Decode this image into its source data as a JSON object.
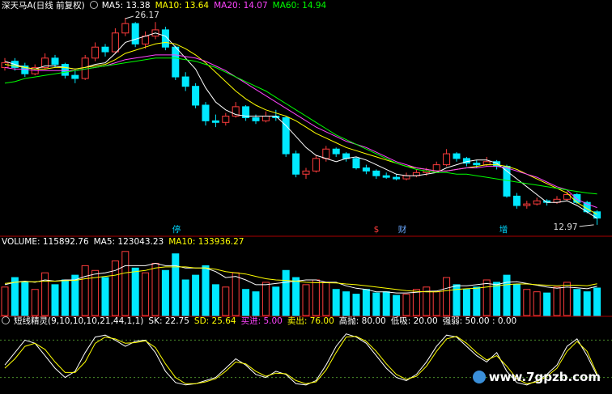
{
  "chart_data": [
    {
      "type": "candlestick",
      "title": "深天马A(日线 前复权)",
      "ylim": [
        12.5,
        27.2
      ],
      "up_color": "#ff3c3c",
      "down_color": "#00e8ff",
      "candles": [
        [
          23.0,
          23.6,
          22.8,
          23.3
        ],
        [
          23.4,
          23.6,
          22.8,
          23.0
        ],
        [
          23.1,
          23.3,
          22.4,
          22.6
        ],
        [
          22.6,
          23.2,
          22.5,
          23.0
        ],
        [
          23.0,
          23.9,
          22.9,
          23.6
        ],
        [
          23.6,
          23.8,
          23.0,
          23.2
        ],
        [
          23.2,
          23.3,
          22.3,
          22.5
        ],
        [
          22.5,
          22.8,
          22.0,
          22.3
        ],
        [
          22.3,
          23.8,
          22.2,
          23.6
        ],
        [
          23.6,
          24.6,
          23.4,
          24.3
        ],
        [
          24.3,
          24.5,
          23.7,
          24.0
        ],
        [
          24.0,
          25.5,
          23.9,
          25.2
        ],
        [
          25.2,
          26.17,
          25.0,
          25.8
        ],
        [
          25.8,
          25.9,
          24.3,
          24.5
        ],
        [
          24.5,
          25.3,
          24.2,
          25.0
        ],
        [
          25.0,
          25.9,
          24.8,
          25.4
        ],
        [
          25.4,
          25.6,
          24.1,
          24.3
        ],
        [
          24.3,
          24.4,
          22.2,
          22.4
        ],
        [
          22.4,
          22.7,
          21.5,
          21.8
        ],
        [
          21.8,
          22.0,
          20.4,
          20.6
        ],
        [
          20.6,
          20.8,
          19.3,
          19.6
        ],
        [
          19.6,
          20.0,
          19.2,
          19.5
        ],
        [
          19.5,
          20.1,
          19.3,
          19.9
        ],
        [
          19.9,
          20.8,
          19.8,
          20.5
        ],
        [
          20.5,
          20.6,
          19.6,
          19.8
        ],
        [
          19.8,
          20.0,
          19.4,
          19.6
        ],
        [
          19.6,
          20.2,
          19.5,
          19.9
        ],
        [
          19.9,
          20.3,
          19.6,
          19.8
        ],
        [
          19.8,
          19.9,
          17.3,
          17.5
        ],
        [
          17.5,
          17.7,
          16.0,
          16.2
        ],
        [
          16.2,
          16.6,
          15.9,
          16.4
        ],
        [
          16.4,
          17.4,
          16.3,
          17.2
        ],
        [
          17.2,
          18.0,
          17.0,
          17.8
        ],
        [
          17.8,
          17.9,
          17.3,
          17.5
        ],
        [
          17.5,
          17.6,
          17.0,
          17.2
        ],
        [
          17.2,
          17.3,
          16.5,
          16.6
        ],
        [
          16.6,
          16.8,
          16.2,
          16.4
        ],
        [
          16.4,
          16.5,
          15.9,
          16.1
        ],
        [
          16.1,
          16.3,
          15.9,
          16.0
        ],
        [
          16.0,
          16.2,
          15.8,
          15.9
        ],
        [
          15.9,
          16.3,
          15.8,
          16.1
        ],
        [
          16.1,
          16.5,
          16.0,
          16.3
        ],
        [
          16.3,
          16.6,
          16.1,
          16.4
        ],
        [
          16.4,
          17.0,
          16.3,
          16.8
        ],
        [
          16.8,
          17.8,
          16.7,
          17.5
        ],
        [
          17.5,
          17.6,
          17.0,
          17.2
        ],
        [
          17.2,
          17.3,
          16.7,
          16.9
        ],
        [
          16.9,
          17.1,
          16.6,
          16.8
        ],
        [
          16.8,
          17.3,
          16.7,
          17.0
        ],
        [
          17.0,
          17.1,
          16.5,
          16.7
        ],
        [
          16.7,
          16.8,
          14.7,
          14.8
        ],
        [
          14.8,
          15.0,
          14.0,
          14.2
        ],
        [
          14.2,
          14.5,
          14.0,
          14.3
        ],
        [
          14.3,
          14.7,
          14.2,
          14.5
        ],
        [
          14.5,
          14.6,
          14.2,
          14.4
        ],
        [
          14.4,
          14.8,
          14.3,
          14.6
        ],
        [
          14.6,
          15.1,
          14.5,
          14.9
        ],
        [
          14.9,
          15.0,
          14.3,
          14.4
        ],
        [
          14.4,
          14.5,
          13.7,
          13.8
        ],
        [
          13.8,
          13.9,
          12.97,
          13.4
        ]
      ],
      "series": [
        {
          "name": "MA5: 13.38",
          "color": "#ffffff",
          "values": [
            23.4,
            23.2,
            23.0,
            22.9,
            23.1,
            23.1,
            23.0,
            22.9,
            23.0,
            23.2,
            23.3,
            23.9,
            24.6,
            24.8,
            25.0,
            25.2,
            25.0,
            24.3,
            23.6,
            22.9,
            21.7,
            20.8,
            20.3,
            20.0,
            19.9,
            19.9,
            19.9,
            19.9,
            19.3,
            18.6,
            17.9,
            17.4,
            17.2,
            17.0,
            17.2,
            17.3,
            17.1,
            16.8,
            16.5,
            16.2,
            16.1,
            16.1,
            16.2,
            16.3,
            16.6,
            16.8,
            17.0,
            17.1,
            17.1,
            16.9,
            16.4,
            15.9,
            15.4,
            14.9,
            14.4,
            14.4,
            14.5,
            14.2,
            13.8,
            13.38
          ]
        },
        {
          "name": "MA10: 13.64",
          "color": "#ffff00",
          "values": [
            23.2,
            23.1,
            23.0,
            22.9,
            22.9,
            23.0,
            23.0,
            22.9,
            23.0,
            23.1,
            23.2,
            23.5,
            23.9,
            24.1,
            24.3,
            24.5,
            24.6,
            24.5,
            24.2,
            23.8,
            23.3,
            22.7,
            22.1,
            21.5,
            21.0,
            20.6,
            20.3,
            20.1,
            19.9,
            19.6,
            19.2,
            18.8,
            18.5,
            18.2,
            17.9,
            17.7,
            17.5,
            17.3,
            17.1,
            16.9,
            16.7,
            16.6,
            16.5,
            16.4,
            16.4,
            16.5,
            16.6,
            16.7,
            16.8,
            16.8,
            16.7,
            16.5,
            16.2,
            15.9,
            15.6,
            15.3,
            15.0,
            14.4,
            14.0,
            13.64
          ]
        },
        {
          "name": "MA20: 14.07",
          "color": "#ff44ff",
          "values": [
            23.0,
            22.9,
            22.9,
            22.8,
            22.8,
            22.8,
            22.8,
            22.8,
            22.9,
            23.0,
            23.1,
            23.3,
            23.5,
            23.6,
            23.7,
            23.8,
            23.8,
            23.8,
            23.7,
            23.6,
            23.4,
            23.1,
            22.8,
            22.4,
            22.0,
            21.6,
            21.2,
            20.8,
            20.4,
            20.0,
            19.6,
            19.2,
            18.9,
            18.6,
            18.3,
            18.1,
            17.9,
            17.6,
            17.3,
            17.0,
            16.8,
            16.6,
            16.5,
            16.4,
            16.4,
            16.5,
            16.6,
            16.6,
            16.7,
            16.7,
            16.6,
            16.4,
            16.2,
            16.0,
            15.7,
            15.4,
            15.2,
            14.6,
            14.3,
            14.07
          ]
        },
        {
          "name": "MA60: 14.94",
          "color": "#00ff00",
          "values": [
            22.0,
            22.1,
            22.3,
            22.4,
            22.5,
            22.6,
            22.7,
            22.8,
            22.9,
            23.0,
            23.1,
            23.2,
            23.3,
            23.4,
            23.5,
            23.6,
            23.6,
            23.6,
            23.5,
            23.4,
            23.2,
            23.0,
            22.7,
            22.4,
            22.1,
            21.8,
            21.5,
            21.1,
            20.7,
            20.3,
            19.9,
            19.5,
            19.1,
            18.7,
            18.4,
            18.1,
            17.8,
            17.5,
            17.2,
            16.9,
            16.7,
            16.5,
            16.4,
            16.3,
            16.3,
            16.2,
            16.2,
            16.1,
            16.0,
            15.9,
            15.8,
            15.7,
            15.6,
            15.5,
            15.4,
            15.3,
            15.2,
            15.1,
            15.0,
            14.94
          ]
        }
      ],
      "high_label": 26.17,
      "low_label": 12.97,
      "markers": [
        "停",
        "$",
        "财",
        "增"
      ]
    },
    {
      "type": "bar",
      "title": "VOLUME: 115892.76",
      "ylim": [
        0,
        300000
      ],
      "values": [
        120000,
        160000,
        140000,
        110000,
        180000,
        130000,
        150000,
        170000,
        210000,
        190000,
        160000,
        230000,
        270000,
        200000,
        180000,
        220000,
        190000,
        260000,
        150000,
        170000,
        210000,
        130000,
        120000,
        180000,
        110000,
        100000,
        140000,
        120000,
        190000,
        160000,
        130000,
        150000,
        140000,
        110000,
        100000,
        90000,
        110000,
        95000,
        100000,
        85000,
        90000,
        110000,
        120000,
        100000,
        160000,
        130000,
        110000,
        120000,
        150000,
        140000,
        170000,
        130000,
        110000,
        100000,
        95000,
        120000,
        140000,
        110000,
        100000,
        115892.76
      ],
      "series": [
        {
          "name": "MA5: 123043.23",
          "color": "#ffffff",
          "values": [
            130000,
            140000,
            145000,
            140000,
            150000,
            145000,
            150000,
            150000,
            165000,
            175000,
            180000,
            190000,
            210000,
            210000,
            210000,
            220000,
            210000,
            210000,
            200000,
            200000,
            200000,
            185000,
            160000,
            165000,
            150000,
            130000,
            130000,
            135000,
            140000,
            145000,
            150000,
            150000,
            140000,
            140000,
            125000,
            115000,
            110000,
            100000,
            100000,
            95000,
            95000,
            98000,
            102000,
            103000,
            115000,
            125000,
            125000,
            130000,
            135000,
            130000,
            140000,
            142000,
            135000,
            128000,
            120000,
            115000,
            120000,
            117000,
            113000,
            123043.23
          ]
        },
        {
          "name": "MA10: 133936.27",
          "color": "#ffff00",
          "values": [
            135000,
            140000,
            142000,
            142000,
            145000,
            145000,
            147000,
            148000,
            155000,
            160000,
            165000,
            170000,
            180000,
            185000,
            190000,
            200000,
            205000,
            205000,
            205000,
            200000,
            200000,
            195000,
            185000,
            180000,
            175000,
            165000,
            155000,
            150000,
            148000,
            145000,
            140000,
            138000,
            138000,
            137000,
            133000,
            130000,
            125000,
            120000,
            115000,
            110000,
            105000,
            102000,
            100000,
            100000,
            105000,
            110000,
            113000,
            115000,
            120000,
            125000,
            130000,
            133000,
            133000,
            130000,
            128000,
            125000,
            128000,
            128000,
            125000,
            133936.27
          ]
        }
      ]
    },
    {
      "type": "line",
      "title": "短线精灵(9,10,10,10,21,44,1,1)",
      "ylim": [
        0,
        100
      ],
      "levels": [
        20,
        80
      ],
      "series": [
        {
          "name": "SK: 22.75",
          "color": "#ffffff",
          "values": [
            40,
            60,
            80,
            75,
            55,
            35,
            20,
            30,
            60,
            85,
            88,
            80,
            70,
            78,
            80,
            60,
            30,
            12,
            8,
            10,
            15,
            20,
            35,
            50,
            40,
            25,
            20,
            30,
            25,
            10,
            8,
            15,
            40,
            70,
            90,
            85,
            75,
            55,
            35,
            20,
            15,
            25,
            45,
            70,
            88,
            85,
            70,
            55,
            45,
            60,
            30,
            12,
            8,
            15,
            25,
            40,
            70,
            82,
            55,
            22.75
          ]
        },
        {
          "name": "SD: 25.64",
          "color": "#ffff00",
          "values": [
            35,
            50,
            70,
            75,
            65,
            45,
            28,
            28,
            45,
            75,
            85,
            82,
            75,
            76,
            79,
            68,
            42,
            20,
            10,
            10,
            13,
            18,
            30,
            45,
            42,
            30,
            22,
            27,
            26,
            15,
            10,
            13,
            32,
            60,
            85,
            86,
            78,
            62,
            42,
            25,
            17,
            22,
            38,
            62,
            82,
            86,
            75,
            60,
            48,
            55,
            38,
            18,
            10,
            13,
            22,
            35,
            62,
            78,
            62,
            25.64
          ]
        }
      ],
      "legend": [
        {
          "label": "买进: 5.00",
          "color": "#ff44ff"
        },
        {
          "label": "卖出: 76.00",
          "color": "#ffff00"
        },
        {
          "label": "高抛: 80.00",
          "color": "#ffffff"
        },
        {
          "label": "低吸: 20.00",
          "color": "#ffffff"
        },
        {
          "label": "强弱: 50.00 : 0.00",
          "color": "#ffffff"
        }
      ]
    }
  ],
  "watermark": "www.7gpzb.com"
}
